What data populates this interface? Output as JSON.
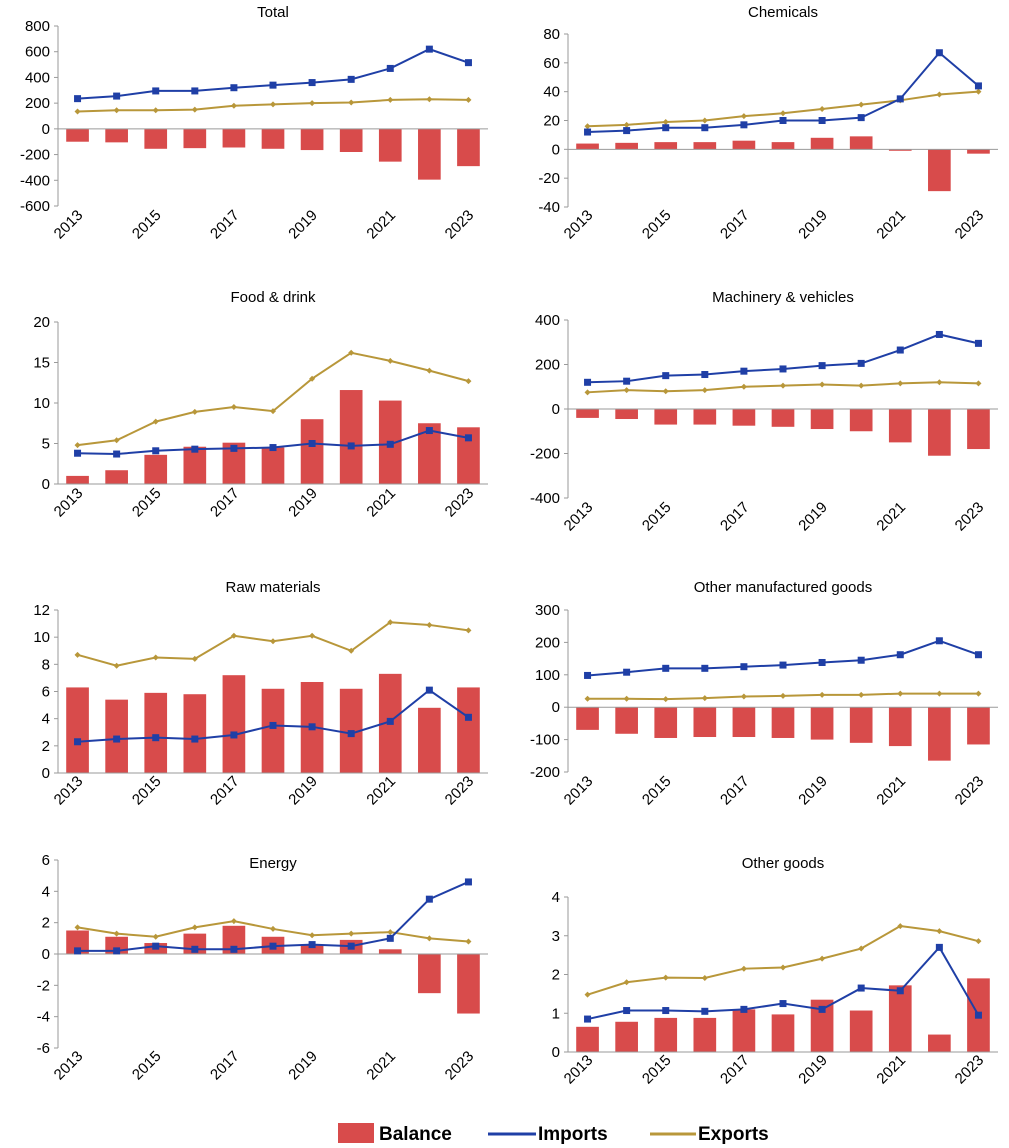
{
  "legend": {
    "balance": "Balance",
    "imports": "Imports",
    "exports": "Exports"
  },
  "colors": {
    "balance": "#d84b4b",
    "imports": "#1f3fa6",
    "exports": "#b8973a",
    "axis": "#9a9a9a"
  },
  "chart_data": [
    {
      "type": "bar+line",
      "title": "Total",
      "x": [
        2013,
        2014,
        2015,
        2016,
        2017,
        2018,
        2019,
        2020,
        2021,
        2022,
        2023
      ],
      "x_tick_labels": [
        "2013",
        "2015",
        "2017",
        "2019",
        "2021",
        "2023"
      ],
      "ylim": [
        -600,
        800
      ],
      "yticks": [
        -600,
        -400,
        -200,
        0,
        200,
        400,
        600,
        800
      ],
      "series": [
        {
          "name": "Balance",
          "kind": "bar",
          "values": [
            -100,
            -105,
            -155,
            -150,
            -145,
            -155,
            -165,
            -180,
            -255,
            -395,
            -290
          ]
        },
        {
          "name": "Imports",
          "kind": "line-marker",
          "values": [
            235,
            255,
            295,
            295,
            320,
            340,
            360,
            385,
            470,
            620,
            515
          ]
        },
        {
          "name": "Exports",
          "kind": "line",
          "values": [
            135,
            145,
            145,
            150,
            180,
            190,
            200,
            205,
            225,
            230,
            225
          ]
        }
      ]
    },
    {
      "type": "bar+line",
      "title": "Chemicals",
      "x": [
        2013,
        2014,
        2015,
        2016,
        2017,
        2018,
        2019,
        2020,
        2021,
        2022,
        2023
      ],
      "x_tick_labels": [
        "2013",
        "2015",
        "2017",
        "2019",
        "2021",
        "2023"
      ],
      "ylim": [
        -40,
        80
      ],
      "yticks": [
        -40,
        -20,
        0,
        20,
        40,
        60,
        80
      ],
      "series": [
        {
          "name": "Balance",
          "kind": "bar",
          "values": [
            4,
            4.5,
            5,
            5,
            6,
            5,
            8,
            9,
            -1,
            -29,
            -3
          ]
        },
        {
          "name": "Imports",
          "kind": "line-marker",
          "values": [
            12,
            13,
            15,
            15,
            17,
            20,
            20,
            22,
            35,
            67,
            44
          ]
        },
        {
          "name": "Exports",
          "kind": "line",
          "values": [
            16,
            17,
            19,
            20,
            23,
            25,
            28,
            31,
            34,
            38,
            40
          ]
        }
      ]
    },
    {
      "type": "bar+line",
      "title": "Food & drink",
      "x": [
        2013,
        2014,
        2015,
        2016,
        2017,
        2018,
        2019,
        2020,
        2021,
        2022,
        2023
      ],
      "x_tick_labels": [
        "2013",
        "2015",
        "2017",
        "2019",
        "2021",
        "2023"
      ],
      "ylim": [
        0,
        20
      ],
      "yticks": [
        0,
        5,
        10,
        15,
        20
      ],
      "series": [
        {
          "name": "Balance",
          "kind": "bar",
          "values": [
            1,
            1.7,
            3.6,
            4.6,
            5.1,
            4.5,
            8.0,
            11.6,
            10.3,
            7.5,
            7.0
          ]
        },
        {
          "name": "Imports",
          "kind": "line-marker",
          "values": [
            3.8,
            3.7,
            4.1,
            4.3,
            4.4,
            4.5,
            5.0,
            4.7,
            4.9,
            6.6,
            5.7
          ]
        },
        {
          "name": "Exports",
          "kind": "line",
          "values": [
            4.8,
            5.4,
            7.7,
            8.9,
            9.5,
            9.0,
            13.0,
            16.2,
            15.2,
            14.0,
            12.7
          ]
        }
      ]
    },
    {
      "type": "bar+line",
      "title": "Machinery & vehicles",
      "x": [
        2013,
        2014,
        2015,
        2016,
        2017,
        2018,
        2019,
        2020,
        2021,
        2022,
        2023
      ],
      "x_tick_labels": [
        "2013",
        "2015",
        "2017",
        "2019",
        "2021",
        "2023"
      ],
      "ylim": [
        -400,
        400
      ],
      "yticks": [
        -400,
        -200,
        0,
        200,
        400
      ],
      "series": [
        {
          "name": "Balance",
          "kind": "bar",
          "values": [
            -40,
            -45,
            -70,
            -70,
            -75,
            -80,
            -90,
            -100,
            -150,
            -210,
            -180
          ]
        },
        {
          "name": "Imports",
          "kind": "line-marker",
          "values": [
            120,
            125,
            150,
            155,
            170,
            180,
            195,
            205,
            265,
            335,
            295
          ]
        },
        {
          "name": "Exports",
          "kind": "line",
          "values": [
            75,
            85,
            80,
            85,
            100,
            105,
            110,
            105,
            115,
            120,
            115
          ]
        }
      ]
    },
    {
      "type": "bar+line",
      "title": "Raw materials",
      "x": [
        2013,
        2014,
        2015,
        2016,
        2017,
        2018,
        2019,
        2020,
        2021,
        2022,
        2023
      ],
      "x_tick_labels": [
        "2013",
        "2015",
        "2017",
        "2019",
        "2021",
        "2023"
      ],
      "ylim": [
        0,
        12
      ],
      "yticks": [
        0,
        2,
        4,
        6,
        8,
        10,
        12
      ],
      "series": [
        {
          "name": "Balance",
          "kind": "bar",
          "values": [
            6.3,
            5.4,
            5.9,
            5.8,
            7.2,
            6.2,
            6.7,
            6.2,
            7.3,
            4.8,
            6.3
          ]
        },
        {
          "name": "Imports",
          "kind": "line-marker",
          "values": [
            2.3,
            2.5,
            2.6,
            2.5,
            2.8,
            3.5,
            3.4,
            2.9,
            3.8,
            6.1,
            4.1
          ]
        },
        {
          "name": "Exports",
          "kind": "line",
          "values": [
            8.7,
            7.9,
            8.5,
            8.4,
            10.1,
            9.7,
            10.1,
            9.0,
            11.1,
            10.9,
            10.5
          ]
        }
      ]
    },
    {
      "type": "bar+line",
      "title": "Other manufactured goods",
      "x": [
        2013,
        2014,
        2015,
        2016,
        2017,
        2018,
        2019,
        2020,
        2021,
        2022,
        2023
      ],
      "x_tick_labels": [
        "2013",
        "2015",
        "2017",
        "2019",
        "2021",
        "2023"
      ],
      "ylim": [
        -200,
        300
      ],
      "yticks": [
        -200,
        -100,
        0,
        100,
        200,
        300
      ],
      "series": [
        {
          "name": "Balance",
          "kind": "bar",
          "values": [
            -70,
            -82,
            -95,
            -92,
            -92,
            -95,
            -100,
            -110,
            -120,
            -165,
            -115
          ]
        },
        {
          "name": "Imports",
          "kind": "line-marker",
          "values": [
            98,
            108,
            120,
            120,
            125,
            130,
            138,
            145,
            162,
            205,
            162
          ]
        },
        {
          "name": "Exports",
          "kind": "line",
          "values": [
            26,
            26,
            25,
            28,
            33,
            35,
            38,
            38,
            42,
            42,
            42
          ]
        }
      ]
    },
    {
      "type": "bar+line",
      "title": "Energy",
      "x": [
        2013,
        2014,
        2015,
        2016,
        2017,
        2018,
        2019,
        2020,
        2021,
        2022,
        2023
      ],
      "x_tick_labels": [
        "2013",
        "2015",
        "2017",
        "2019",
        "2021",
        "2023"
      ],
      "ylim": [
        -6,
        6
      ],
      "yticks": [
        -6,
        -4,
        -2,
        0,
        2,
        4,
        6
      ],
      "series": [
        {
          "name": "Balance",
          "kind": "bar",
          "values": [
            1.5,
            1.1,
            0.7,
            1.3,
            1.8,
            1.1,
            0.6,
            0.9,
            0.3,
            -2.5,
            -3.8
          ]
        },
        {
          "name": "Imports",
          "kind": "line-marker",
          "values": [
            0.2,
            0.2,
            0.5,
            0.3,
            0.3,
            0.5,
            0.6,
            0.5,
            1.0,
            3.5,
            4.6
          ]
        },
        {
          "name": "Exports",
          "kind": "line",
          "values": [
            1.7,
            1.3,
            1.1,
            1.7,
            2.1,
            1.6,
            1.2,
            1.3,
            1.4,
            1.0,
            0.8
          ]
        }
      ]
    },
    {
      "type": "bar+line",
      "title": "Other goods",
      "x": [
        2013,
        2014,
        2015,
        2016,
        2017,
        2018,
        2019,
        2020,
        2021,
        2022,
        2023
      ],
      "x_tick_labels": [
        "2013",
        "2015",
        "2017",
        "2019",
        "2021",
        "2023"
      ],
      "ylim": [
        0,
        4
      ],
      "yticks": [
        0,
        1,
        2,
        3,
        4
      ],
      "series": [
        {
          "name": "Balance",
          "kind": "bar",
          "values": [
            0.65,
            0.78,
            0.88,
            0.88,
            1.1,
            0.97,
            1.35,
            1.07,
            1.72,
            0.45,
            1.9
          ]
        },
        {
          "name": "Imports",
          "kind": "line-marker",
          "values": [
            0.85,
            1.07,
            1.07,
            1.05,
            1.1,
            1.25,
            1.1,
            1.65,
            1.58,
            2.7,
            0.95
          ]
        },
        {
          "name": "Exports",
          "kind": "line",
          "values": [
            1.48,
            1.8,
            1.92,
            1.91,
            2.15,
            2.18,
            2.41,
            2.67,
            3.25,
            3.12,
            2.86
          ]
        }
      ]
    }
  ]
}
